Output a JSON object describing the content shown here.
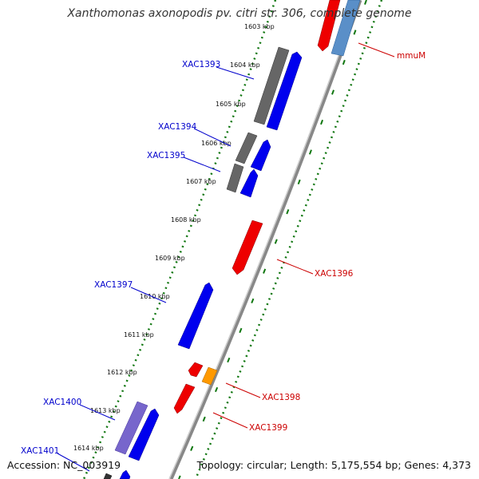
{
  "title": "Xanthomonas axonopodis pv. citri str. 306, complete genome",
  "accession": "Accession: NC_003919",
  "summary": "Topology: circular; Length: 5,175,554 bp; Genes: 4,373",
  "colors": {
    "gray_gene": "#666666",
    "blue_gene": "#0000ee",
    "red_gene": "#ee0000",
    "orange_gene": "#ff9900",
    "purple_gene": "#7766cc",
    "steelblue_gene": "#5a8fc8",
    "blue_label": "#0000cc",
    "red_label": "#cc0000",
    "ruler_green": "#117711"
  },
  "ticks": [
    "1603 kbp",
    "1604 kbp",
    "1605 kbp",
    "1606 kbp",
    "1607 kbp",
    "1608 kbp",
    "1609 kbp",
    "1610 kbp",
    "1611 kbp",
    "1612 kbp",
    "1613 kbp",
    "1614 kbp"
  ],
  "labels": [
    "XAC1393",
    "XAC1394",
    "XAC1395",
    "XAC1397",
    "XAC1400",
    "XAC1401",
    "mmuM",
    "XAC1396",
    "XAC1398",
    "XAC1399"
  ]
}
